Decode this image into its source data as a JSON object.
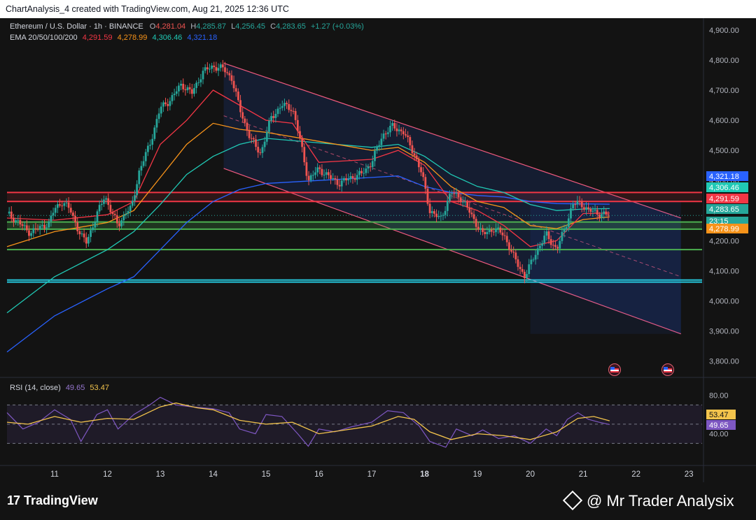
{
  "header": {
    "title": "ChartAnalysis_4 created with TradingView.com, Aug 21, 2025 12:36 UTC"
  },
  "legend": {
    "symbol": "Ethereum / U.S. Dollar · 1h · BINANCE",
    "open_label": "O",
    "open": "4,281.04",
    "high_label": "H",
    "high": "4,285.87",
    "low_label": "L",
    "low": "4,256.45",
    "close_label": "C",
    "close": "4,283.65",
    "change": "+1.27 (+0.03%)",
    "ema_label": "EMA 20/50/100/200",
    "ema20": "4,291.59",
    "ema50": "4,278.99",
    "ema100": "4,306.46",
    "ema200": "4,321.18"
  },
  "rsi_legend": {
    "label": "RSI (14, close)",
    "rsi": "49.65",
    "ma": "53.47"
  },
  "footer": {
    "brand": "TradingView",
    "watermark": "@ Mr Trader Analysix"
  },
  "colors": {
    "up": "#26a69a",
    "down": "#ef5350",
    "ema20": "#f23645",
    "ema50": "#f7931a",
    "ema100": "#20c9b5",
    "ema200": "#2962ff",
    "rsi": "#7e57c2",
    "rsi_ma": "#f3c44c",
    "channel": "#f05a7e",
    "resistance": "#f23645",
    "support": "#4caf50",
    "support_low": "#26c6da"
  },
  "chart_data": {
    "type": "candlestick",
    "title": "Ethereum / U.S. Dollar · 1h · BINANCE",
    "ylim": [
      3750,
      4930
    ],
    "y_ticks": [
      "3,800.00",
      "3,900.00",
      "4,000.00",
      "4,100.00",
      "4,200.00",
      "4,300.00",
      "4,400.00",
      "4,500.00",
      "4,600.00",
      "4,700.00",
      "4,800.00",
      "4,900.00"
    ],
    "x_ticks": [
      "11",
      "12",
      "13",
      "14",
      "15",
      "16",
      "17",
      "18",
      "19",
      "20",
      "21",
      "22",
      "23"
    ],
    "x_range_days": [
      10.1,
      23.25
    ],
    "price_path": [
      [
        10.1,
        4290
      ],
      [
        10.3,
        4265
      ],
      [
        10.5,
        4228
      ],
      [
        10.7,
        4240
      ],
      [
        10.9,
        4260
      ],
      [
        11.0,
        4305
      ],
      [
        11.15,
        4330
      ],
      [
        11.3,
        4300
      ],
      [
        11.5,
        4215
      ],
      [
        11.6,
        4195
      ],
      [
        11.8,
        4285
      ],
      [
        11.95,
        4350
      ],
      [
        12.1,
        4285
      ],
      [
        12.2,
        4250
      ],
      [
        12.35,
        4295
      ],
      [
        12.45,
        4305
      ],
      [
        12.6,
        4430
      ],
      [
        12.8,
        4520
      ],
      [
        13.0,
        4640
      ],
      [
        13.2,
        4670
      ],
      [
        13.4,
        4720
      ],
      [
        13.6,
        4690
      ],
      [
        13.8,
        4760
      ],
      [
        14.0,
        4780
      ],
      [
        14.2,
        4770
      ],
      [
        14.35,
        4740
      ],
      [
        14.5,
        4640
      ],
      [
        14.7,
        4540
      ],
      [
        14.9,
        4490
      ],
      [
        15.1,
        4610
      ],
      [
        15.3,
        4650
      ],
      [
        15.5,
        4640
      ],
      [
        15.65,
        4530
      ],
      [
        15.8,
        4400
      ],
      [
        16.0,
        4440
      ],
      [
        16.2,
        4410
      ],
      [
        16.4,
        4390
      ],
      [
        16.6,
        4410
      ],
      [
        16.8,
        4420
      ],
      [
        17.0,
        4460
      ],
      [
        17.2,
        4550
      ],
      [
        17.4,
        4580
      ],
      [
        17.6,
        4560
      ],
      [
        17.8,
        4490
      ],
      [
        17.95,
        4420
      ],
      [
        18.1,
        4300
      ],
      [
        18.3,
        4270
      ],
      [
        18.5,
        4360
      ],
      [
        18.7,
        4340
      ],
      [
        18.9,
        4280
      ],
      [
        19.1,
        4220
      ],
      [
        19.3,
        4240
      ],
      [
        19.5,
        4220
      ],
      [
        19.7,
        4140
      ],
      [
        19.9,
        4080
      ],
      [
        20.1,
        4160
      ],
      [
        20.3,
        4220
      ],
      [
        20.5,
        4170
      ],
      [
        20.65,
        4240
      ],
      [
        20.8,
        4320
      ],
      [
        20.95,
        4325
      ],
      [
        21.1,
        4300
      ],
      [
        21.3,
        4290
      ],
      [
        21.5,
        4283.65
      ]
    ],
    "ema20": [
      [
        10.1,
        4275
      ],
      [
        11.0,
        4268
      ],
      [
        12.0,
        4286
      ],
      [
        12.5,
        4330
      ],
      [
        13.0,
        4520
      ],
      [
        13.5,
        4600
      ],
      [
        14.0,
        4700
      ],
      [
        14.5,
        4650
      ],
      [
        15.0,
        4600
      ],
      [
        15.5,
        4590
      ],
      [
        16.0,
        4460
      ],
      [
        17.0,
        4470
      ],
      [
        17.5,
        4500
      ],
      [
        18.0,
        4450
      ],
      [
        18.5,
        4330
      ],
      [
        19.0,
        4300
      ],
      [
        19.5,
        4250
      ],
      [
        20.0,
        4180
      ],
      [
        20.5,
        4200
      ],
      [
        21.0,
        4290
      ],
      [
        21.5,
        4291.59
      ]
    ],
    "ema50": [
      [
        10.1,
        4180
      ],
      [
        11.0,
        4230
      ],
      [
        12.0,
        4260
      ],
      [
        12.5,
        4300
      ],
      [
        13.0,
        4410
      ],
      [
        13.5,
        4520
      ],
      [
        14.0,
        4590
      ],
      [
        14.5,
        4570
      ],
      [
        15.0,
        4560
      ],
      [
        16.0,
        4530
      ],
      [
        17.0,
        4500
      ],
      [
        17.5,
        4510
      ],
      [
        18.0,
        4460
      ],
      [
        18.5,
        4380
      ],
      [
        19.0,
        4330
      ],
      [
        19.5,
        4310
      ],
      [
        20.0,
        4250
      ],
      [
        20.5,
        4240
      ],
      [
        21.0,
        4270
      ],
      [
        21.5,
        4278.99
      ]
    ],
    "ema100": [
      [
        10.1,
        3960
      ],
      [
        11.0,
        4080
      ],
      [
        12.0,
        4170
      ],
      [
        12.5,
        4230
      ],
      [
        13.0,
        4320
      ],
      [
        13.5,
        4420
      ],
      [
        14.0,
        4480
      ],
      [
        14.5,
        4520
      ],
      [
        15.0,
        4540
      ],
      [
        16.0,
        4525
      ],
      [
        17.0,
        4510
      ],
      [
        17.5,
        4520
      ],
      [
        18.0,
        4480
      ],
      [
        18.5,
        4420
      ],
      [
        19.0,
        4380
      ],
      [
        19.5,
        4360
      ],
      [
        20.0,
        4320
      ],
      [
        20.5,
        4300
      ],
      [
        21.0,
        4305
      ],
      [
        21.5,
        4306.46
      ]
    ],
    "ema200": [
      [
        10.1,
        3830
      ],
      [
        11.0,
        3950
      ],
      [
        12.0,
        4040
      ],
      [
        12.5,
        4080
      ],
      [
        13.0,
        4170
      ],
      [
        13.5,
        4260
      ],
      [
        14.0,
        4330
      ],
      [
        14.5,
        4370
      ],
      [
        15.0,
        4390
      ],
      [
        16.0,
        4400
      ],
      [
        17.0,
        4410
      ],
      [
        17.5,
        4415
      ],
      [
        18.0,
        4380
      ],
      [
        18.5,
        4360
      ],
      [
        19.0,
        4350
      ],
      [
        19.5,
        4345
      ],
      [
        20.0,
        4330
      ],
      [
        20.5,
        4323
      ],
      [
        21.0,
        4322
      ],
      [
        21.5,
        4321.18
      ]
    ],
    "channel": {
      "upper": [
        [
          14.2,
          4790
        ],
        [
          22.85,
          4275
        ]
      ],
      "lower": [
        [
          14.2,
          4440
        ],
        [
          22.85,
          3890
        ]
      ],
      "mid": [
        [
          14.2,
          4615
        ],
        [
          22.85,
          4080
        ]
      ]
    },
    "levels": [
      {
        "price": 4360,
        "kind": "resistance"
      },
      {
        "price": 4330,
        "kind": "resistance"
      },
      {
        "price": 4262,
        "kind": "support"
      },
      {
        "price": 4238,
        "kind": "support"
      },
      {
        "price": 4170,
        "kind": "support"
      },
      {
        "price": 4069,
        "kind": "support_low"
      },
      {
        "price": 4062,
        "kind": "support_low"
      }
    ],
    "price_labels": [
      {
        "text": "4,321.18",
        "price": 4321.18,
        "color": "#2962ff"
      },
      {
        "text": "4,306.46",
        "price": 4306.46,
        "color": "#20c9b5"
      },
      {
        "text": "4,291.59",
        "price": 4291.59,
        "color": "#f23645"
      },
      {
        "text": "4,283.65",
        "price": 4283.65,
        "color": "#26a69a"
      },
      {
        "text": "23:15",
        "price": 4266,
        "color": "#26a69a"
      },
      {
        "text": "4,278.99",
        "price": 4278.99,
        "color": "#f7931a"
      }
    ],
    "rsi": {
      "ylim": [
        15,
        95
      ],
      "y_ticks": [
        "80.00",
        "40.00"
      ],
      "band": [
        30,
        70
      ],
      "rsi_path": [
        [
          10.1,
          62
        ],
        [
          10.4,
          45
        ],
        [
          10.7,
          52
        ],
        [
          11.0,
          65
        ],
        [
          11.3,
          55
        ],
        [
          11.5,
          32
        ],
        [
          11.8,
          60
        ],
        [
          12.0,
          65
        ],
        [
          12.2,
          45
        ],
        [
          12.5,
          60
        ],
        [
          12.8,
          70
        ],
        [
          13.0,
          78
        ],
        [
          13.3,
          70
        ],
        [
          13.6,
          68
        ],
        [
          14.0,
          66
        ],
        [
          14.3,
          62
        ],
        [
          14.5,
          45
        ],
        [
          14.8,
          40
        ],
        [
          15.0,
          60
        ],
        [
          15.3,
          58
        ],
        [
          15.6,
          40
        ],
        [
          15.8,
          27
        ],
        [
          16.0,
          45
        ],
        [
          16.3,
          42
        ],
        [
          16.6,
          47
        ],
        [
          17.0,
          52
        ],
        [
          17.3,
          64
        ],
        [
          17.6,
          62
        ],
        [
          17.9,
          48
        ],
        [
          18.1,
          32
        ],
        [
          18.4,
          26
        ],
        [
          18.6,
          45
        ],
        [
          18.9,
          38
        ],
        [
          19.1,
          44
        ],
        [
          19.4,
          35
        ],
        [
          19.7,
          38
        ],
        [
          20.0,
          30
        ],
        [
          20.3,
          45
        ],
        [
          20.5,
          38
        ],
        [
          20.7,
          55
        ],
        [
          20.9,
          62
        ],
        [
          21.1,
          55
        ],
        [
          21.3,
          52
        ],
        [
          21.5,
          49.65
        ]
      ],
      "ma_path": [
        [
          10.1,
          52
        ],
        [
          10.5,
          50
        ],
        [
          11.0,
          58
        ],
        [
          11.5,
          52
        ],
        [
          12.0,
          56
        ],
        [
          12.5,
          55
        ],
        [
          13.0,
          68
        ],
        [
          13.3,
          72
        ],
        [
          13.7,
          67
        ],
        [
          14.0,
          65
        ],
        [
          14.5,
          54
        ],
        [
          15.0,
          50
        ],
        [
          15.5,
          52
        ],
        [
          16.0,
          40
        ],
        [
          16.5,
          44
        ],
        [
          17.0,
          48
        ],
        [
          17.5,
          58
        ],
        [
          17.8,
          55
        ],
        [
          18.1,
          42
        ],
        [
          18.5,
          34
        ],
        [
          19.0,
          40
        ],
        [
          19.5,
          38
        ],
        [
          20.0,
          34
        ],
        [
          20.5,
          42
        ],
        [
          20.9,
          56
        ],
        [
          21.2,
          58
        ],
        [
          21.5,
          53.47
        ]
      ]
    }
  }
}
